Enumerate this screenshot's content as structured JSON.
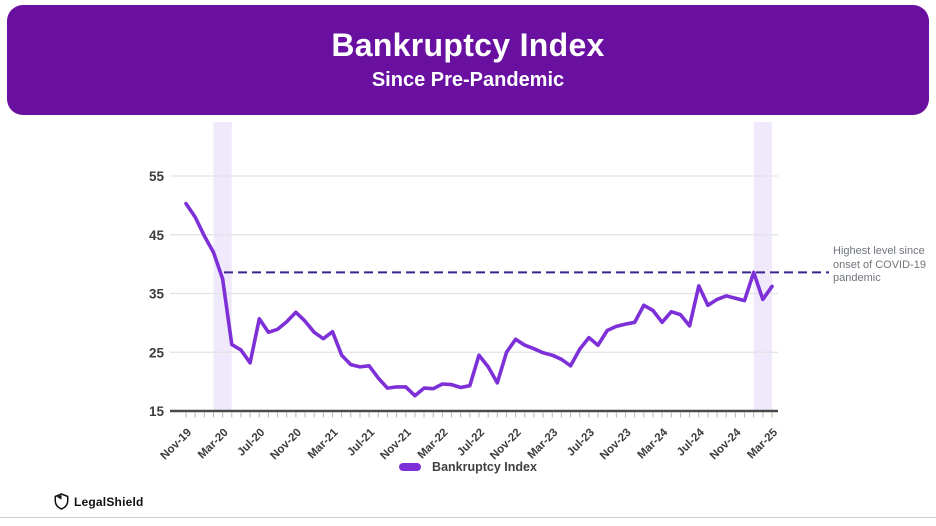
{
  "header": {
    "title": "Bankruptcy Index",
    "subtitle": "Since Pre-Pandemic"
  },
  "chart_data": {
    "type": "line",
    "title": "Bankruptcy Index",
    "xlabel": "",
    "ylabel": "",
    "ylim": [
      15,
      55
    ],
    "yticks": [
      15,
      25,
      35,
      45,
      55
    ],
    "grid": "horizontal",
    "legend_position": "bottom",
    "xtick_labels": [
      "Nov-19",
      "Mar-20",
      "Jul-20",
      "Nov-20",
      "Mar-21",
      "Jul-21",
      "Nov-21",
      "Mar-22",
      "Jul-22",
      "Nov-22",
      "Mar-23",
      "Jul-23",
      "Nov-23",
      "Mar-24",
      "Jul-24",
      "Nov-24",
      "Mar-25"
    ],
    "series": [
      {
        "name": "Bankruptcy Index",
        "color": "#7d30d8",
        "x": [
          "Nov-19",
          "Dec-19",
          "Jan-20",
          "Feb-20",
          "Mar-20",
          "Apr-20",
          "May-20",
          "Jun-20",
          "Jul-20",
          "Aug-20",
          "Sep-20",
          "Oct-20",
          "Nov-20",
          "Dec-20",
          "Jan-21",
          "Feb-21",
          "Mar-21",
          "Apr-21",
          "May-21",
          "Jun-21",
          "Jul-21",
          "Aug-21",
          "Sep-21",
          "Oct-21",
          "Nov-21",
          "Dec-21",
          "Jan-22",
          "Feb-22",
          "Mar-22",
          "Apr-22",
          "May-22",
          "Jun-22",
          "Jul-22",
          "Aug-22",
          "Sep-22",
          "Oct-22",
          "Nov-22",
          "Dec-22",
          "Jan-23",
          "Feb-23",
          "Mar-23",
          "Apr-23",
          "May-23",
          "Jun-23",
          "Jul-23",
          "Aug-23",
          "Sep-23",
          "Oct-23",
          "Nov-23",
          "Dec-23",
          "Jan-24",
          "Feb-24",
          "Mar-24",
          "Apr-24",
          "May-24",
          "Jun-24",
          "Jul-24",
          "Aug-24",
          "Sep-24",
          "Oct-24",
          "Nov-24",
          "Dec-24",
          "Jan-25",
          "Feb-25",
          "Mar-25"
        ],
        "values": [
          50.3,
          48.0,
          44.8,
          42.0,
          37.5,
          26.3,
          25.4,
          23.2,
          30.7,
          28.4,
          28.9,
          30.2,
          31.8,
          30.3,
          28.4,
          27.3,
          28.5,
          24.5,
          22.9,
          22.5,
          22.7,
          20.6,
          18.9,
          19.1,
          19.1,
          17.6,
          18.9,
          18.8,
          19.6,
          19.5,
          19.0,
          19.3,
          24.5,
          22.5,
          19.8,
          25.0,
          27.2,
          26.2,
          25.6,
          24.9,
          24.5,
          23.8,
          22.7,
          25.5,
          27.5,
          26.2,
          28.7,
          29.4,
          29.8,
          30.1,
          33.0,
          32.1,
          30.1,
          31.9,
          31.4,
          29.5,
          36.3,
          33.0,
          34.0,
          34.6,
          34.2,
          33.8,
          38.6,
          34.0,
          36.2
        ]
      }
    ],
    "highlight_bands": [
      {
        "from": "Feb-20",
        "to": "Apr-20"
      },
      {
        "from": "Jan-25",
        "to": "Mar-25"
      }
    ],
    "reference_line": {
      "value": 38.6,
      "style": "dashed",
      "label": "Highest level since onset of COVID-19 pandemic"
    }
  },
  "annotation": {
    "text": "Highest level since onset of COVID-19 pandemic"
  },
  "legend": {
    "label": "Bankruptcy Index"
  },
  "footer": {
    "brand": "LegalShield",
    "logo_icon": "shield-icon"
  },
  "colors": {
    "banner_bg": "#6a10a1",
    "line": "#7d30d8",
    "reference_line": "#3a2490",
    "highlight_band": "#efe9fb",
    "gridline": "#e3e3e3",
    "axis": "#4a4a4a",
    "tick": "#b5b5b5",
    "axis_label": "#3d3d3d",
    "annotation_text": "#70767d",
    "title_text": "#ffffff"
  }
}
